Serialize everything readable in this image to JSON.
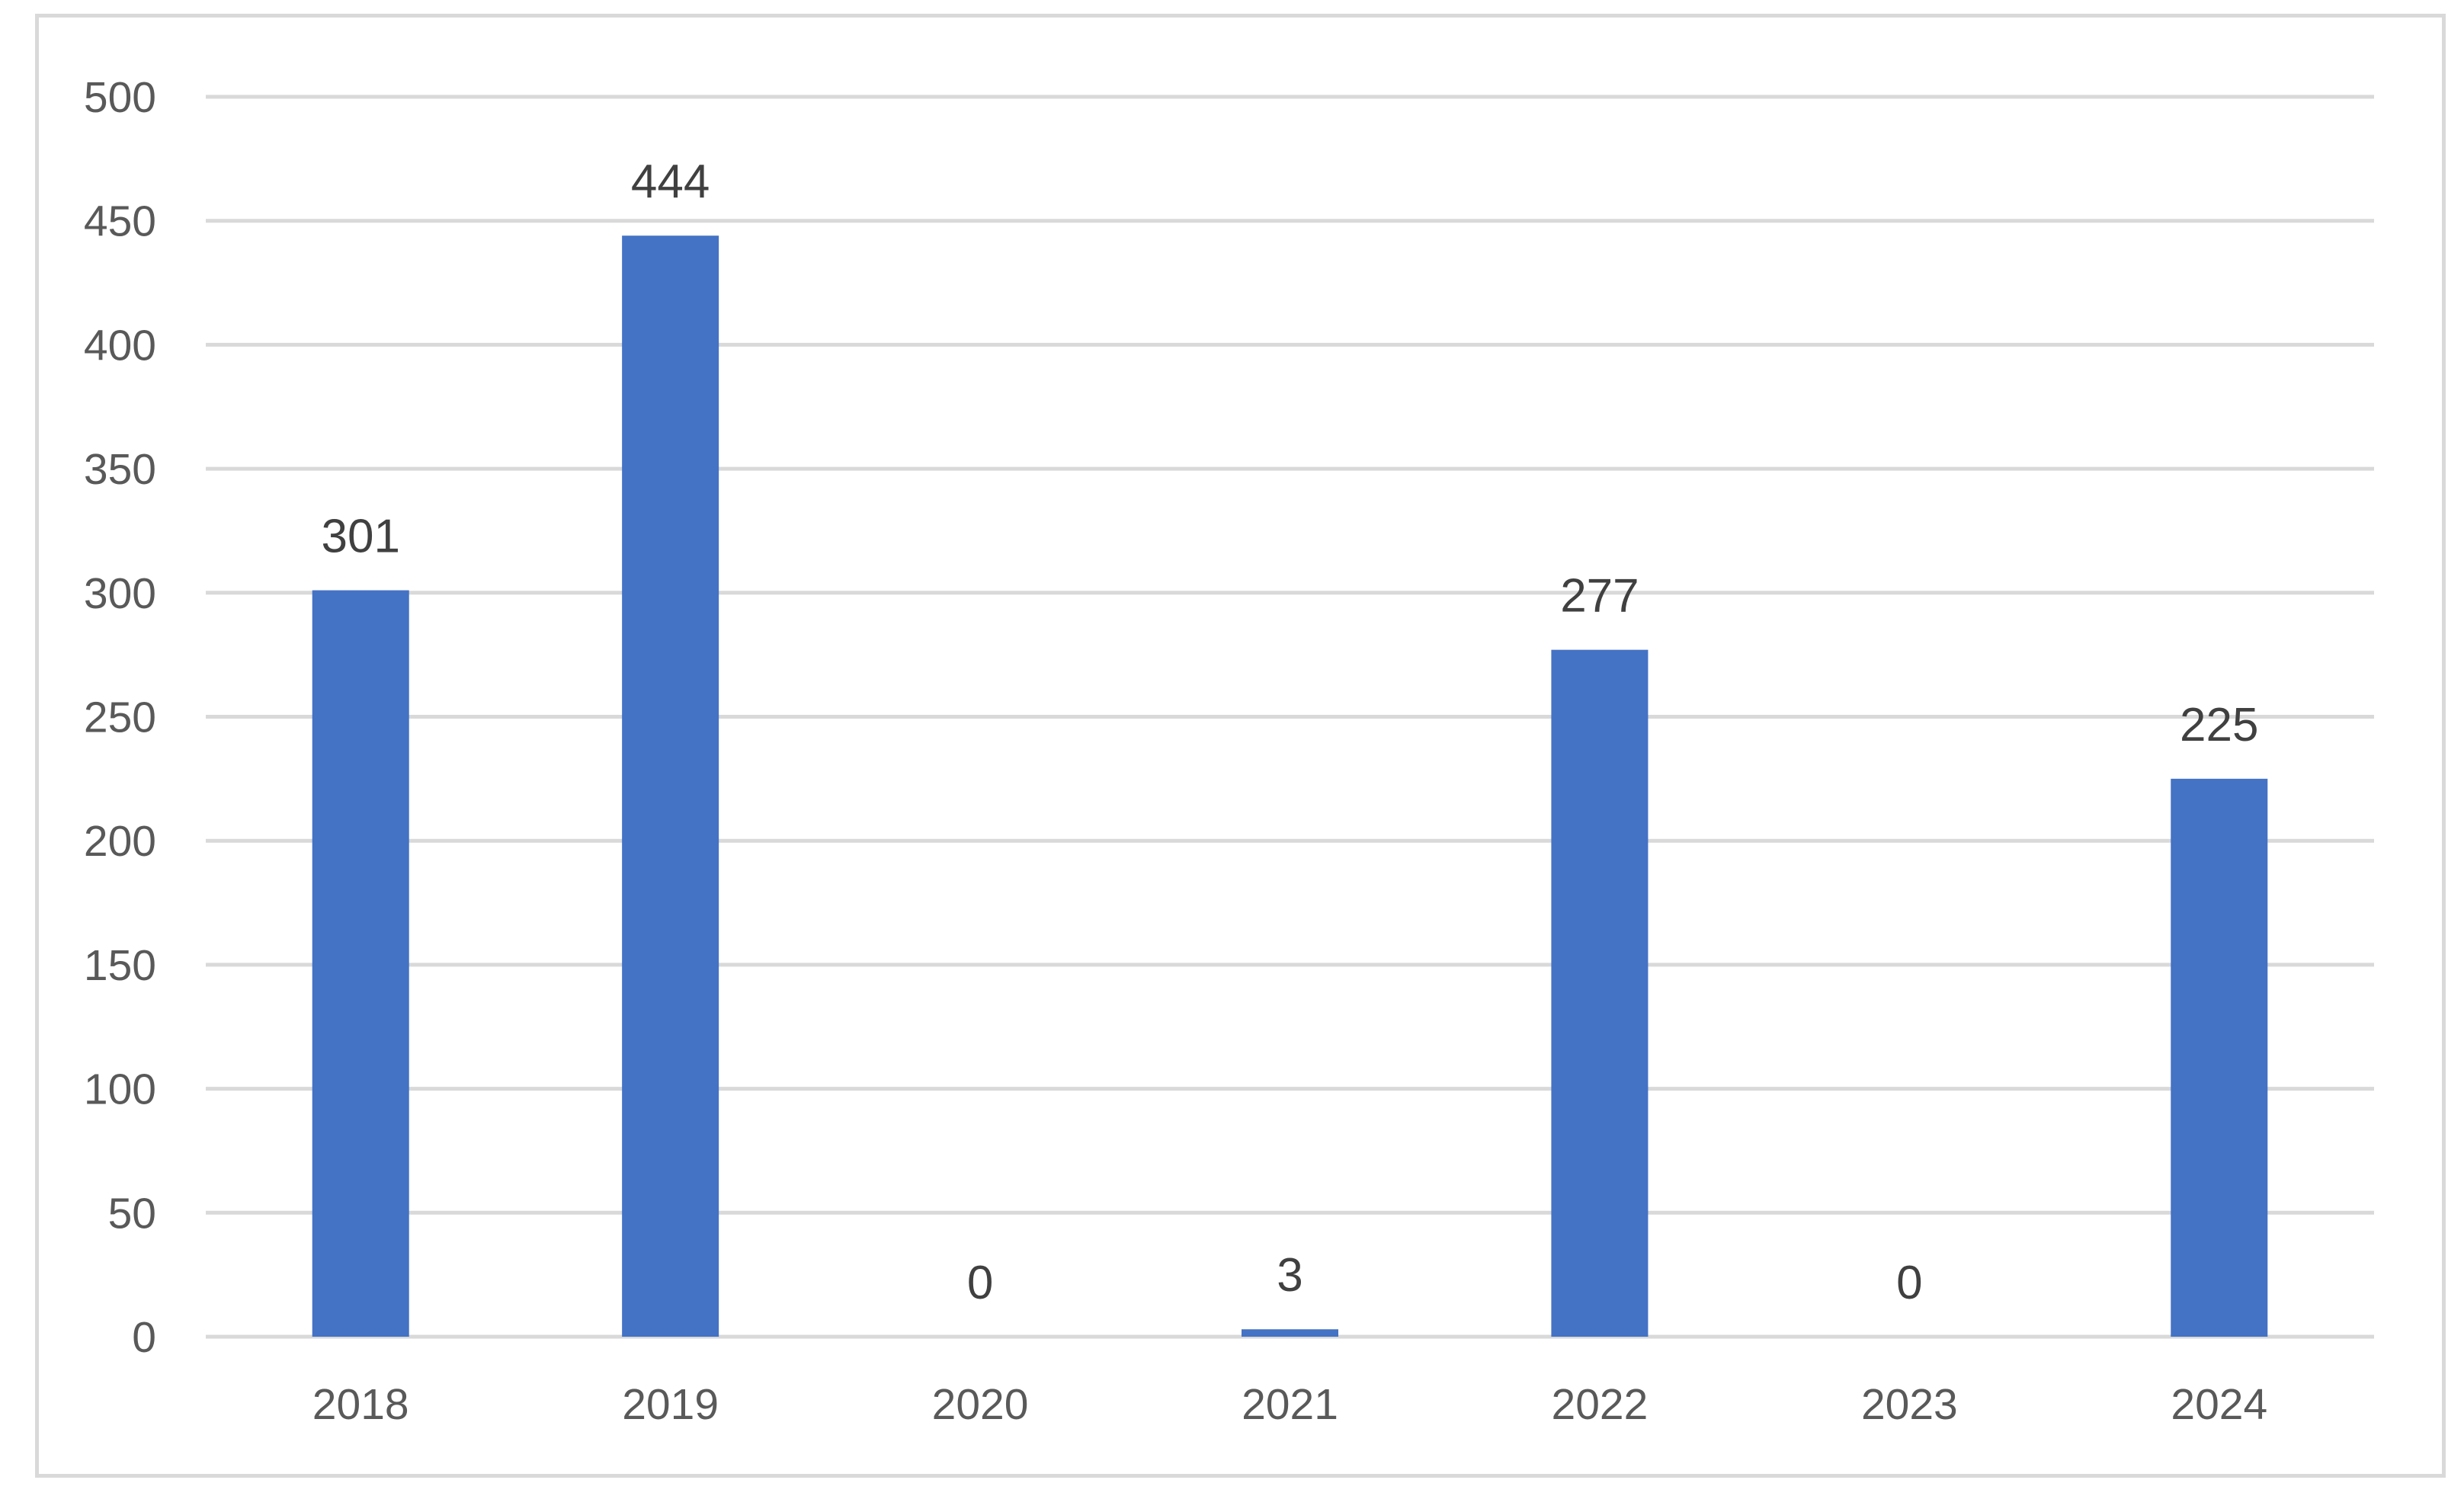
{
  "chart_data": {
    "type": "bar",
    "title": "",
    "xlabel": "",
    "ylabel": "",
    "categories": [
      "2018",
      "2019",
      "2020",
      "2021",
      "2022",
      "2023",
      "2024"
    ],
    "values": [
      301,
      444,
      0,
      3,
      277,
      0,
      225
    ],
    "data_labels": [
      "301",
      "444",
      "0",
      "3",
      "277",
      "0",
      "225"
    ],
    "ylim": [
      0,
      500
    ],
    "yticks": [
      0,
      50,
      100,
      150,
      200,
      250,
      300,
      350,
      400,
      450,
      500
    ],
    "ytick_labels": [
      "0",
      "50",
      "100",
      "150",
      "200",
      "250",
      "300",
      "350",
      "400",
      "450",
      "500"
    ],
    "grid": true,
    "legend": "none",
    "colors": {
      "bar": "#4472c4",
      "grid": "#d9d9d9",
      "tick_text": "#595959",
      "label_text": "#404040",
      "border": "#d9d9d9"
    }
  }
}
